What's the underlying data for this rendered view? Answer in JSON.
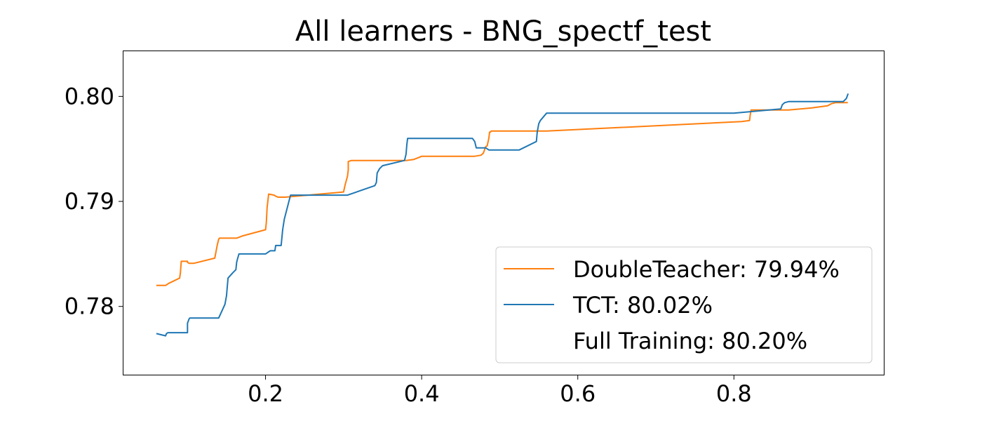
{
  "chart_data": {
    "type": "line",
    "title": "All learners - BNG_spectf_test",
    "xlabel": "",
    "ylabel": "",
    "xlim": [
      0.018,
      0.992
    ],
    "ylim": [
      0.7735,
      0.8043
    ],
    "xticks": [
      "0.2",
      "0.4",
      "0.6",
      "0.8"
    ],
    "xtick_values": [
      0.2,
      0.4,
      0.6,
      0.8
    ],
    "yticks": [
      "0.78",
      "0.79",
      "0.80"
    ],
    "ytick_values": [
      0.78,
      0.79,
      0.8
    ],
    "grid": false,
    "legend_position": "lower-right",
    "legend": [
      {
        "label": "DoubleTeacher: 79.94%",
        "color": "#ff7f0e",
        "has_line": true
      },
      {
        "label": "TCT: 80.02%",
        "color": "#1f77b4",
        "has_line": true
      },
      {
        "label": "Full Training: 80.20%",
        "color": "",
        "has_line": false
      }
    ],
    "series": [
      {
        "name": "DoubleTeacher",
        "color": "#ff7f0e",
        "x": [
          0.061,
          0.072,
          0.076,
          0.09,
          0.091,
          0.092,
          0.1,
          0.1,
          0.102,
          0.108,
          0.135,
          0.138,
          0.14,
          0.141,
          0.163,
          0.17,
          0.2,
          0.201,
          0.202,
          0.204,
          0.211,
          0.213,
          0.216,
          0.225,
          0.3,
          0.302,
          0.305,
          0.306,
          0.306,
          0.31,
          0.38,
          0.39,
          0.397,
          0.4,
          0.468,
          0.476,
          0.479,
          0.48,
          0.482,
          0.484,
          0.486,
          0.487,
          0.488,
          0.489,
          0.5,
          0.56,
          0.81,
          0.82,
          0.821,
          0.822,
          0.84,
          0.86,
          0.87,
          0.9,
          0.91,
          0.92,
          0.925,
          0.93,
          0.94,
          0.945
        ],
        "y": [
          0.782,
          0.782,
          0.7822,
          0.7827,
          0.7832,
          0.7843,
          0.7843,
          0.7842,
          0.7841,
          0.7841,
          0.7846,
          0.7858,
          0.7864,
          0.7865,
          0.7865,
          0.7867,
          0.7873,
          0.788,
          0.7894,
          0.7907,
          0.7906,
          0.7905,
          0.7904,
          0.7904,
          0.7909,
          0.7916,
          0.7924,
          0.793,
          0.7938,
          0.7939,
          0.7939,
          0.794,
          0.7942,
          0.7943,
          0.7943,
          0.7944,
          0.7946,
          0.7948,
          0.7952,
          0.7953,
          0.796,
          0.7966,
          0.7966,
          0.7967,
          0.7967,
          0.7967,
          0.7976,
          0.7977,
          0.7983,
          0.7987,
          0.7987,
          0.7987,
          0.7987,
          0.7989,
          0.799,
          0.7991,
          0.7993,
          0.7994,
          0.7994,
          0.7994
        ]
      },
      {
        "name": "TCT",
        "color": "#1f77b4",
        "x": [
          0.061,
          0.072,
          0.073,
          0.075,
          0.1,
          0.1,
          0.102,
          0.103,
          0.14,
          0.148,
          0.15,
          0.152,
          0.158,
          0.162,
          0.163,
          0.164,
          0.166,
          0.168,
          0.2,
          0.206,
          0.206,
          0.212,
          0.213,
          0.215,
          0.22,
          0.222,
          0.224,
          0.23,
          0.232,
          0.235,
          0.305,
          0.34,
          0.342,
          0.343,
          0.346,
          0.35,
          0.378,
          0.38,
          0.381,
          0.382,
          0.46,
          0.465,
          0.468,
          0.47,
          0.482,
          0.486,
          0.5,
          0.525,
          0.547,
          0.548,
          0.55,
          0.552,
          0.56,
          0.8,
          0.86,
          0.862,
          0.865,
          0.87,
          0.9,
          0.94,
          0.944,
          0.946
        ],
        "y": [
          0.7774,
          0.7772,
          0.7774,
          0.7775,
          0.7775,
          0.7784,
          0.7788,
          0.7789,
          0.7789,
          0.7802,
          0.781,
          0.7827,
          0.7832,
          0.7835,
          0.7842,
          0.7845,
          0.785,
          0.785,
          0.785,
          0.7853,
          0.7853,
          0.7853,
          0.7858,
          0.7858,
          0.7858,
          0.7873,
          0.7883,
          0.79,
          0.7906,
          0.7906,
          0.7906,
          0.7915,
          0.7918,
          0.7927,
          0.7931,
          0.7934,
          0.7939,
          0.7945,
          0.7954,
          0.796,
          0.796,
          0.796,
          0.7957,
          0.7951,
          0.7951,
          0.7949,
          0.7949,
          0.7949,
          0.7957,
          0.7966,
          0.7974,
          0.7977,
          0.7984,
          0.7984,
          0.7988,
          0.7992,
          0.7994,
          0.7995,
          0.7995,
          0.7995,
          0.7998,
          0.8002
        ]
      }
    ]
  }
}
